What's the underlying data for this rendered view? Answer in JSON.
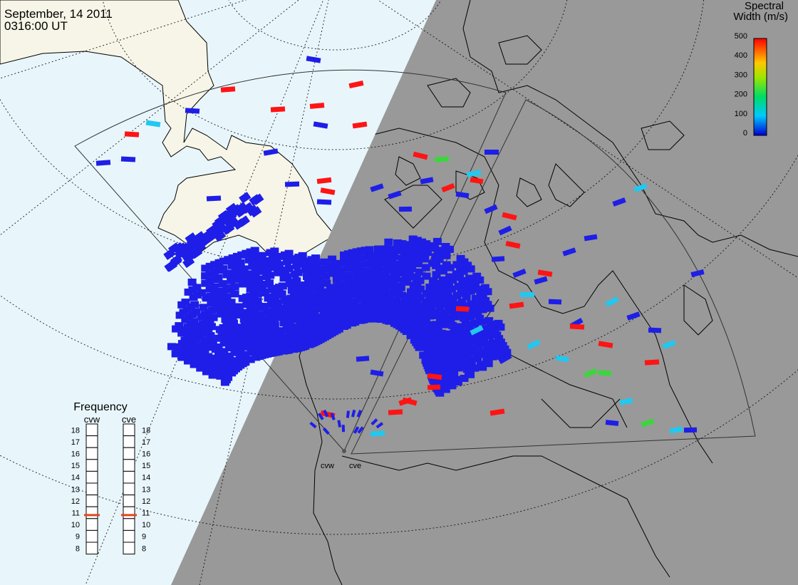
{
  "header": {
    "date": "September, 14 2011",
    "time": "0316:00 UT"
  },
  "colorbar": {
    "title_line1": "Spectral",
    "title_line2": "Width (m/s)",
    "ticks": [
      "500",
      "400",
      "300",
      "200",
      "100",
      "0"
    ],
    "min": 0,
    "max": 500
  },
  "frequency": {
    "title": "Frequency",
    "ticks": [
      "18",
      "17",
      "16",
      "15",
      "14",
      "13",
      "12",
      "11",
      "10",
      "9",
      "8"
    ],
    "radars": [
      {
        "name": "cvw",
        "value": 10.8
      },
      {
        "name": "cve",
        "value": 10.8
      }
    ]
  },
  "sites": [
    {
      "name": "cvw"
    },
    {
      "name": "cve"
    }
  ],
  "colors": {
    "ocean": "#e8f6fc",
    "land_day": "#f6f5e7",
    "night": "#999999",
    "low": "#1e1ee8",
    "mid": "#21c8f0",
    "green": "#3cd63c",
    "high": "#ff1414",
    "freq_mark": "#e2461e"
  }
}
